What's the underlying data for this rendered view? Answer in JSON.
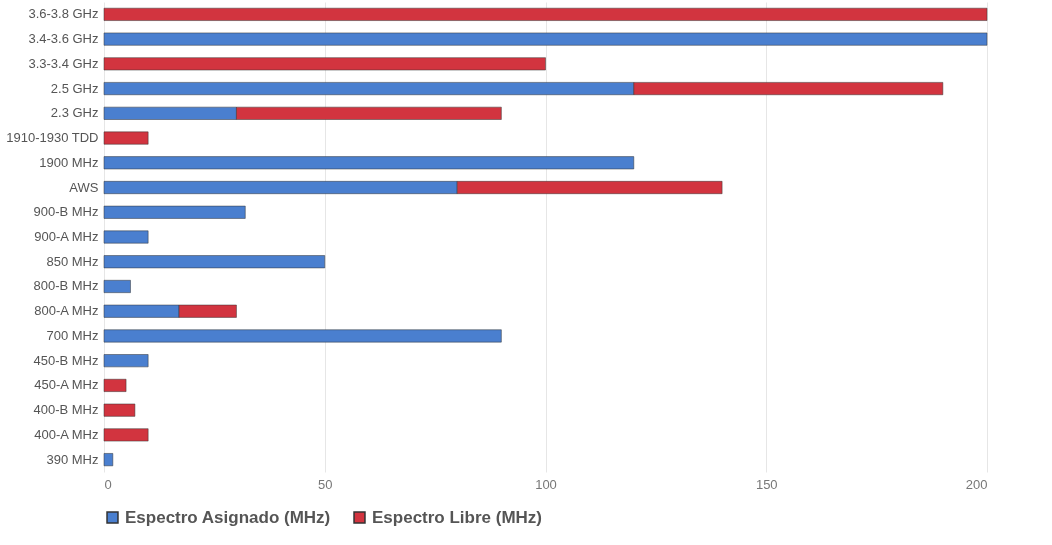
{
  "chart_data": {
    "type": "bar",
    "orientation": "horizontal",
    "stacked": true,
    "categories": [
      "3.6-3.8 GHz",
      "3.4-3.6 GHz",
      "3.3-3.4 GHz",
      "2.5 GHz",
      "2.3 GHz",
      "1910-1930 TDD",
      "1900 MHz",
      "AWS",
      "900-B MHz",
      "900-A MHz",
      "850 MHz",
      "800-B MHz",
      "800-A MHz",
      "700 MHz",
      "450-B MHz",
      "450-A MHz",
      "400-B MHz",
      "400-A MHz",
      "390 MHz"
    ],
    "series": [
      {
        "name": "Espectro Asignado (MHz)",
        "color": "#4a7fcf",
        "values": [
          null,
          200,
          null,
          120,
          30,
          null,
          120,
          80,
          32,
          10,
          50,
          6,
          17,
          90,
          10,
          null,
          null,
          null,
          2
        ]
      },
      {
        "name": "Espectro Libre (MHz)",
        "color": "#d2343f",
        "values": [
          200,
          null,
          100,
          70,
          60,
          10,
          null,
          60,
          null,
          null,
          null,
          null,
          13,
          null,
          null,
          5,
          7,
          10,
          null
        ]
      }
    ],
    "xlim": [
      0,
      200
    ],
    "xticks": [
      0,
      50,
      100,
      150,
      200
    ],
    "grid": "x",
    "legend": "bottom"
  }
}
